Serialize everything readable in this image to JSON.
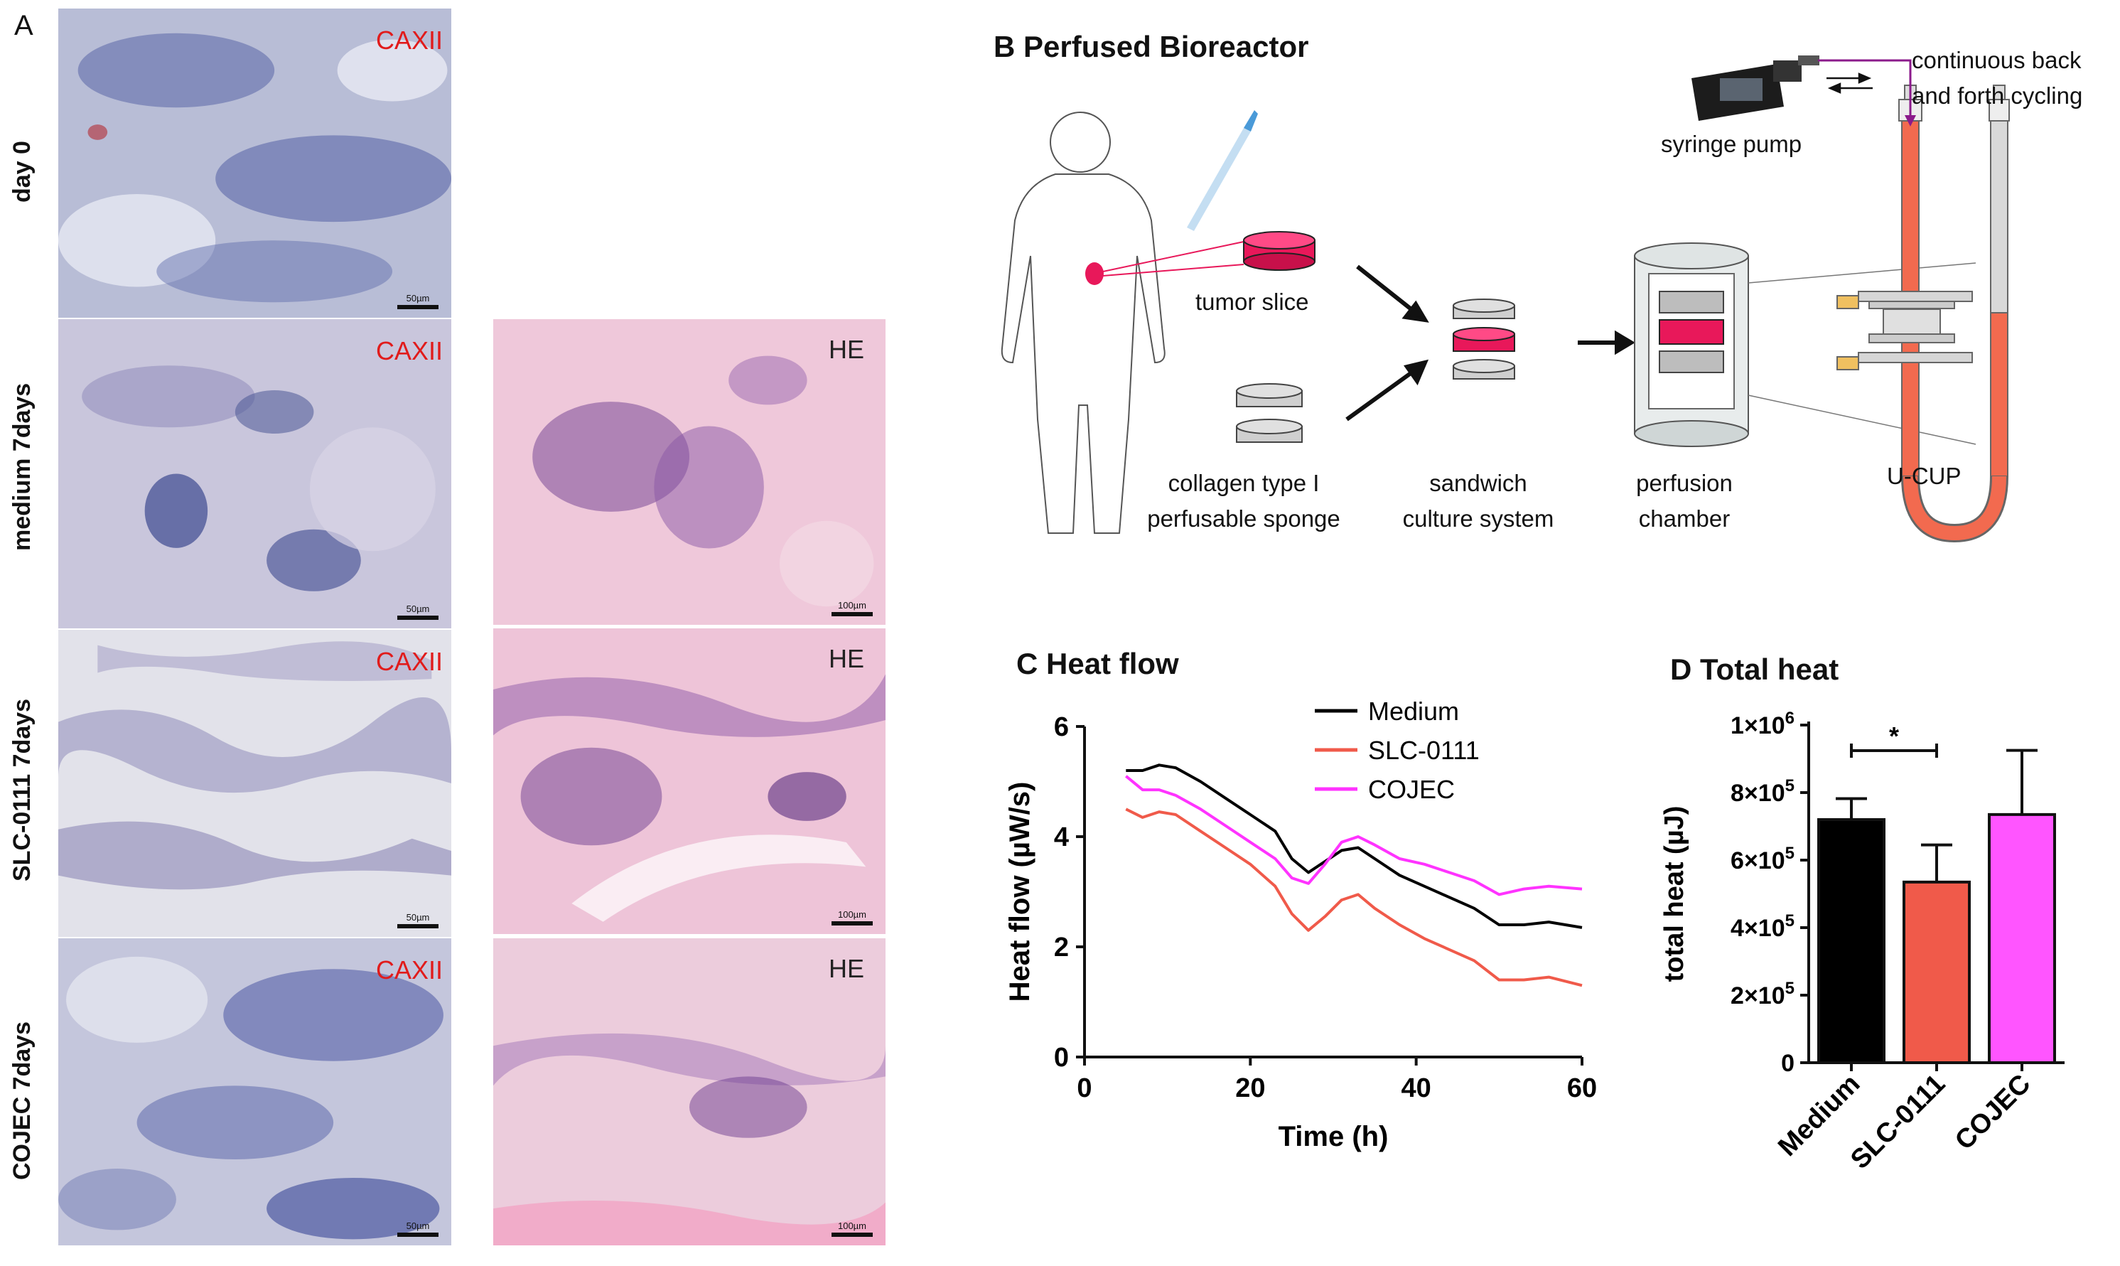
{
  "panel_a": {
    "letter": "A",
    "rows": [
      {
        "label": "day 0",
        "left_stain": "CAXII",
        "left_scale": "50µm",
        "right_stain": "",
        "right_scale": ""
      },
      {
        "label": "medium 7days",
        "left_stain": "CAXII",
        "left_scale": "50µm",
        "right_stain": "HE",
        "right_scale": "100µm"
      },
      {
        "label": "SLC-0111 7days",
        "left_stain": "CAXII",
        "left_scale": "50µm",
        "right_stain": "HE",
        "right_scale": "100µm"
      },
      {
        "label": "COJEC 7days",
        "left_stain": "CAXII",
        "left_scale": "50µm",
        "right_stain": "HE",
        "right_scale": "100µm"
      }
    ]
  },
  "panel_b": {
    "title": "B Perfused Bioreactor",
    "labels": {
      "tumor_slice": "tumor  slice",
      "collagen": "collagen type I",
      "collagen2": "perfusable sponge",
      "sandwich": "sandwich",
      "sandwich2": "culture system",
      "perfusion": "perfusion",
      "perfusion2": "chamber",
      "ucup": "U-CUP",
      "syringe": "syringe pump",
      "cycling": "continuous back",
      "cycling2": "and forth cycling"
    },
    "colors": {
      "tumor": "#e8185a",
      "fluid": "#f26a4f",
      "tube": "#cfcfcf"
    }
  },
  "panel_c": {
    "title": "C Heat flow",
    "chart_data": {
      "type": "line",
      "xlabel": "Time (h)",
      "ylabel": "Heat flow (µW/s)",
      "xlim": [
        0,
        60
      ],
      "ylim": [
        0,
        6
      ],
      "xticks": [
        "0",
        "20",
        "40",
        "60"
      ],
      "yticks": [
        "0",
        "2",
        "4",
        "6"
      ],
      "legend_position": "top-right",
      "series": [
        {
          "name": "Medium",
          "color": "#000000",
          "x": [
            5,
            7,
            9,
            11,
            14,
            17,
            20,
            23,
            25,
            27,
            29,
            31,
            33,
            35,
            38,
            41,
            44,
            47,
            50,
            53,
            56,
            60
          ],
          "y": [
            5.2,
            5.2,
            5.3,
            5.25,
            5.0,
            4.7,
            4.4,
            4.1,
            3.6,
            3.35,
            3.55,
            3.75,
            3.8,
            3.6,
            3.3,
            3.1,
            2.9,
            2.7,
            2.4,
            2.4,
            2.45,
            2.35
          ]
        },
        {
          "name": "SLC-0111",
          "color": "#f05a4a",
          "x": [
            5,
            7,
            9,
            11,
            14,
            17,
            20,
            23,
            25,
            27,
            29,
            31,
            33,
            35,
            38,
            41,
            44,
            47,
            50,
            53,
            56,
            60
          ],
          "y": [
            4.5,
            4.35,
            4.45,
            4.4,
            4.1,
            3.8,
            3.5,
            3.1,
            2.6,
            2.3,
            2.55,
            2.85,
            2.95,
            2.7,
            2.4,
            2.15,
            1.95,
            1.75,
            1.4,
            1.4,
            1.45,
            1.3
          ]
        },
        {
          "name": "COJEC",
          "color": "#ff33ff",
          "x": [
            5,
            7,
            9,
            11,
            14,
            17,
            20,
            23,
            25,
            27,
            29,
            31,
            33,
            35,
            38,
            41,
            44,
            47,
            50,
            53,
            56,
            60
          ],
          "y": [
            5.1,
            4.85,
            4.85,
            4.75,
            4.5,
            4.2,
            3.9,
            3.6,
            3.25,
            3.15,
            3.5,
            3.9,
            4.0,
            3.85,
            3.6,
            3.5,
            3.35,
            3.2,
            2.95,
            3.05,
            3.1,
            3.05
          ]
        }
      ]
    }
  },
  "panel_d": {
    "title": "D Total heat",
    "chart_data": {
      "type": "bar",
      "ylabel": "total heat (µJ)",
      "ylim": [
        0,
        1000000
      ],
      "yticks": [
        {
          "base": "0",
          "exp": ""
        },
        {
          "base": "2×10",
          "exp": "5"
        },
        {
          "base": "4×10",
          "exp": "5"
        },
        {
          "base": "6×10",
          "exp": "5"
        },
        {
          "base": "8×10",
          "exp": "5"
        },
        {
          "base": "1×10",
          "exp": "6"
        }
      ],
      "categories": [
        "Medium",
        "SLC-0111",
        "COJEC"
      ],
      "values": [
        720000,
        535000,
        735000
      ],
      "errors": [
        62000,
        110000,
        190000
      ],
      "colors": [
        "#000000",
        "#f05a4a",
        "#ff55ff"
      ],
      "significance": {
        "from": 0,
        "to": 1,
        "label": "*"
      }
    }
  }
}
